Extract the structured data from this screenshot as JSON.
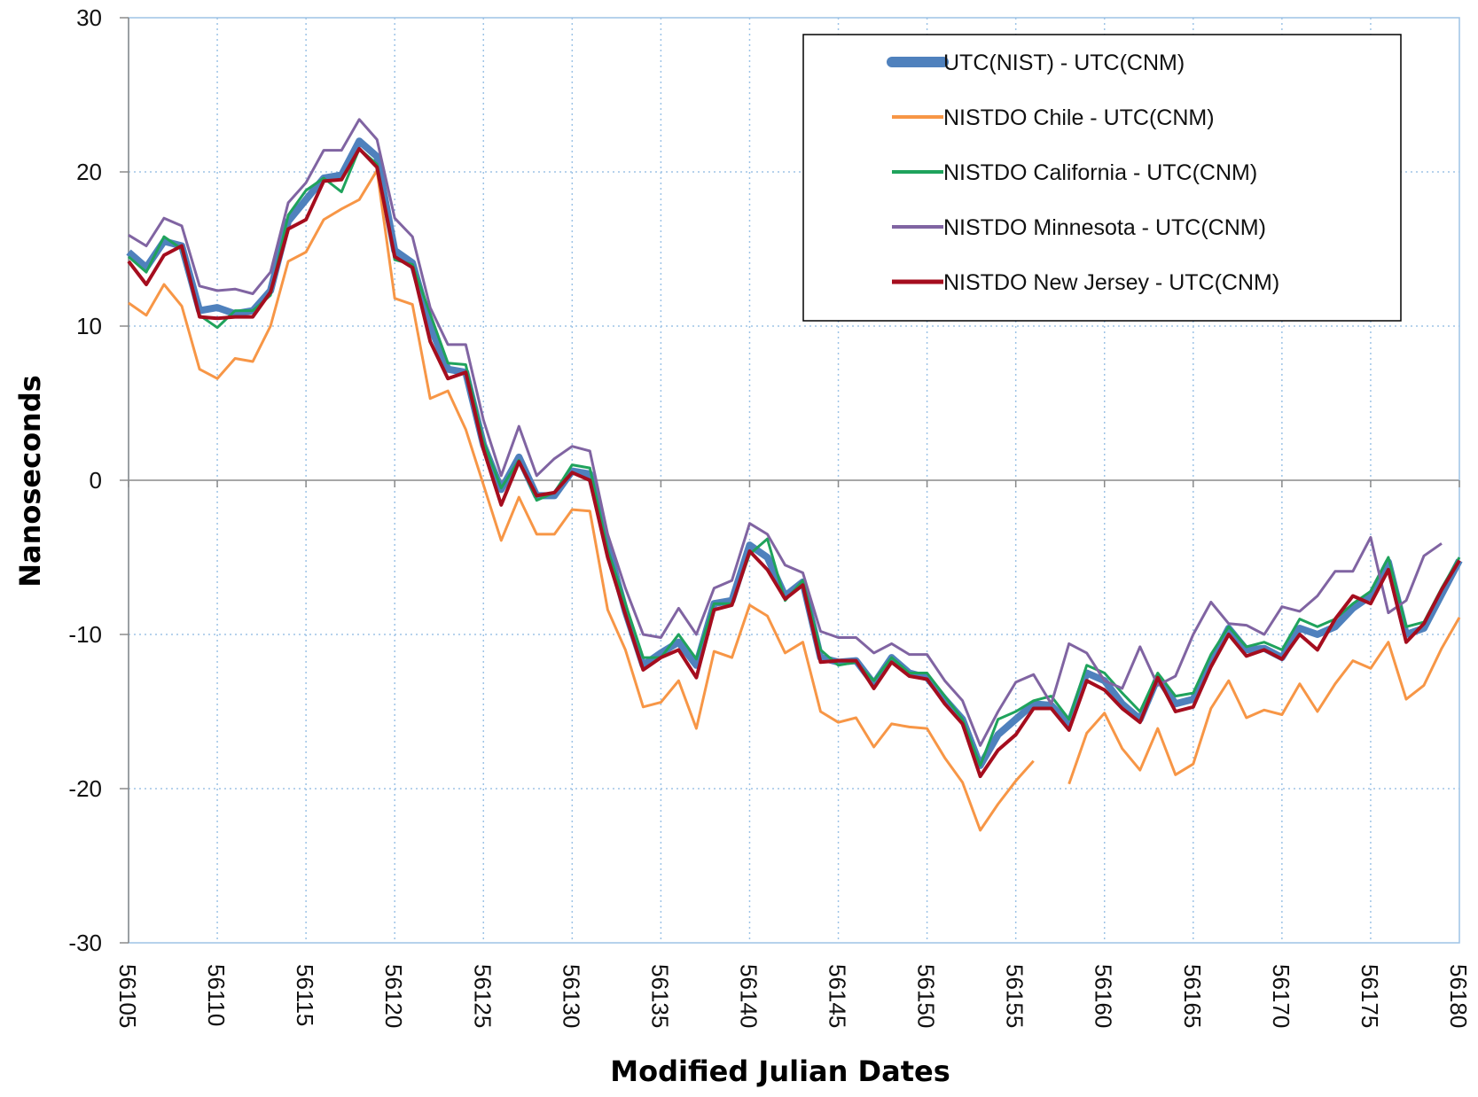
{
  "chart_data": {
    "type": "line",
    "xlabel": "Modified Julian Dates",
    "ylabel": "Nanoseconds",
    "xlim": [
      56105,
      56180
    ],
    "ylim": [
      -30,
      30
    ],
    "yticks": [
      30,
      20,
      10,
      0,
      -10,
      -20,
      -30
    ],
    "xticks": [
      56105,
      56110,
      56115,
      56120,
      56125,
      56130,
      56135,
      56140,
      56145,
      56150,
      56155,
      56160,
      56165,
      56170,
      56175,
      56180
    ],
    "grid": true,
    "legend_position": "top-right",
    "x": [
      56105,
      56106,
      56107,
      56108,
      56109,
      56110,
      56111,
      56112,
      56113,
      56114,
      56115,
      56116,
      56117,
      56118,
      56119,
      56120,
      56121,
      56122,
      56123,
      56124,
      56125,
      56126,
      56127,
      56128,
      56129,
      56130,
      56131,
      56132,
      56133,
      56134,
      56135,
      56136,
      56137,
      56138,
      56139,
      56140,
      56141,
      56142,
      56143,
      56144,
      56145,
      56146,
      56147,
      56148,
      56149,
      56150,
      56151,
      56152,
      56153,
      56154,
      56155,
      56156,
      56157,
      56158,
      56159,
      56160,
      56161,
      56162,
      56163,
      56164,
      56165,
      56166,
      56167,
      56168,
      56169,
      56170,
      56171,
      56172,
      56173,
      56174,
      56175,
      56176,
      56177,
      56178,
      56179,
      56180
    ],
    "series": [
      {
        "name": "UTC(NIST) - UTC(CNM)",
        "color": "#4f81bd",
        "width": 8,
        "values": [
          14.8,
          13.8,
          15.5,
          15.2,
          11,
          11.2,
          10.8,
          11,
          12.3,
          16.8,
          18.2,
          19.6,
          19.8,
          22,
          21,
          14.9,
          14.1,
          10,
          7.2,
          7,
          2.3,
          -0.6,
          1.5,
          -1,
          -1,
          0.6,
          0.4,
          -4.2,
          -8.5,
          -12,
          -11.2,
          -10.5,
          -12,
          -8,
          -7.8,
          -4.2,
          -5,
          -7.5,
          -6.6,
          -11.5,
          -11.8,
          -11.7,
          -13.2,
          -11.5,
          -12.5,
          -12.8,
          -14.2,
          -15.5,
          -18.5,
          -16.5,
          -15.5,
          -14.5,
          -14.6,
          -15.8,
          -12.5,
          -13,
          -14.5,
          -15.5,
          -12.8,
          -14.5,
          -14.2,
          -11.8,
          -9.6,
          -11,
          -10.9,
          -11.5,
          -9.6,
          -10,
          -9.5,
          -8.3,
          -7.5,
          -5.3,
          -10,
          -9.6,
          -7.4,
          -5.2
        ]
      },
      {
        "name": "NISTDO Chile - UTC(CNM)",
        "color": "#f79646",
        "width": 3,
        "values": [
          11.5,
          10.7,
          12.7,
          11.3,
          7.2,
          6.6,
          7.9,
          7.7,
          10,
          14.2,
          14.8,
          16.9,
          17.6,
          18.2,
          20.1,
          11.8,
          11.4,
          5.3,
          5.8,
          3.3,
          -0.3,
          -3.9,
          -1.1,
          -3.5,
          -3.5,
          -1.9,
          -2,
          -8.4,
          -11,
          -14.7,
          -14.4,
          -13,
          -16.1,
          -11.1,
          -11.5,
          -8.1,
          -8.8,
          -11.2,
          -10.5,
          -15,
          -15.7,
          -15.4,
          -17.3,
          -15.8,
          -16,
          -16.1,
          -18,
          -19.6,
          -22.7,
          -21,
          -19.5,
          -18.2,
          null,
          -19.7,
          -16.4,
          -15.1,
          -17.4,
          -18.8,
          -16.1,
          -19.1,
          -18.4,
          -14.8,
          -13,
          -15.4,
          -14.9,
          -15.2,
          -13.2,
          -15,
          -13.2,
          -11.7,
          -12.2,
          -10.5,
          -14.2,
          -13.3,
          -10.9,
          -8.9
        ]
      },
      {
        "name": "NISTDO California - UTC(CNM)",
        "color": "#1fa35c",
        "width": 3,
        "values": [
          14.5,
          13.5,
          15.8,
          15,
          10.7,
          9.9,
          11,
          11,
          12,
          17.2,
          18.8,
          19.6,
          18.7,
          21.5,
          20.5,
          14.3,
          14,
          10.8,
          7.6,
          7.5,
          2.5,
          -0.5,
          1.3,
          -1.3,
          -0.8,
          1,
          0.8,
          -4.5,
          -8,
          -11.5,
          -11.5,
          -10,
          -11.6,
          -8,
          -8,
          -4.8,
          -3.8,
          -7.8,
          -6.5,
          -11,
          -12,
          -11.8,
          -13,
          -11.5,
          -12.5,
          -12.5,
          -14,
          -15.5,
          -18.5,
          -15.5,
          -15,
          -14.3,
          -14,
          -15.5,
          -12,
          -12.5,
          -13.8,
          -15,
          -12.5,
          -14,
          -13.8,
          -11.3,
          -9.5,
          -10.8,
          -10.5,
          -11,
          -9,
          -9.5,
          -9,
          -8,
          -7.2,
          -5,
          -9.5,
          -9.2,
          -7,
          -5
        ]
      },
      {
        "name": "NISTDO Minnesota - UTC(CNM)",
        "color": "#8064a2",
        "width": 3,
        "values": [
          15.9,
          15.2,
          17,
          16.5,
          12.6,
          12.3,
          12.4,
          12.1,
          13.5,
          18,
          19.3,
          21.4,
          21.4,
          23.4,
          22.1,
          17,
          15.8,
          11.2,
          8.8,
          8.8,
          3.9,
          0.3,
          3.5,
          0.3,
          1.4,
          2.2,
          1.9,
          -3.5,
          -7,
          -10,
          -10.2,
          -8.3,
          -10,
          -7,
          -6.5,
          -2.8,
          -3.5,
          -5.5,
          -6,
          -9.8,
          -10.2,
          -10.2,
          -11.2,
          -10.6,
          -11.3,
          -11.3,
          -13,
          -14.3,
          -17.2,
          -15,
          -13.1,
          -12.6,
          -14.5,
          -10.6,
          -11.2,
          -13,
          -13.5,
          -10.8,
          -13.3,
          -12.7,
          -10,
          -7.9,
          -9.3,
          -9.4,
          -10,
          -8.2,
          -8.5,
          -7.5,
          -5.9,
          -5.9,
          -3.7,
          -8.6,
          -7.8,
          -4.9,
          -4.1,
          null
        ]
      },
      {
        "name": "NISTDO New Jersey - UTC(CNM)",
        "color": "#a50d1e",
        "width": 4,
        "values": [
          14.2,
          12.7,
          14.6,
          15.2,
          10.6,
          10.5,
          10.6,
          10.6,
          12.2,
          16.3,
          16.9,
          19.4,
          19.5,
          21.5,
          20.3,
          14.5,
          13.8,
          9,
          6.6,
          7,
          2,
          -1.6,
          1.2,
          -1,
          -0.8,
          0.5,
          0,
          -5,
          -8.7,
          -12.3,
          -11.5,
          -11,
          -12.8,
          -8.4,
          -8.1,
          -4.6,
          -5.8,
          -7.7,
          -6.8,
          -11.8,
          -11.7,
          -11.7,
          -13.5,
          -11.8,
          -12.7,
          -12.9,
          -14.5,
          -15.8,
          -19.2,
          -17.5,
          -16.5,
          -14.8,
          -14.8,
          -16.2,
          -13,
          -13.6,
          -14.8,
          -15.7,
          -12.8,
          -15,
          -14.7,
          -12.1,
          -10,
          -11.4,
          -11,
          -11.6,
          -10,
          -11,
          -9,
          -7.5,
          -8,
          -5.8,
          -10.5,
          -9.3,
          -7.1,
          -5.2
        ]
      }
    ]
  }
}
